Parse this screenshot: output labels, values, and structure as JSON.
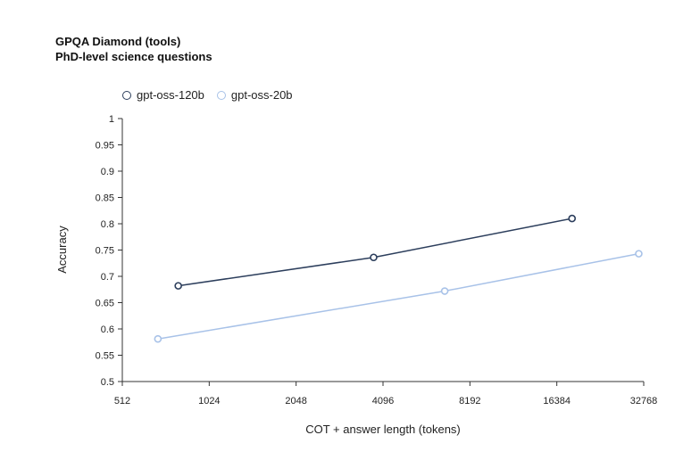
{
  "chart_data": {
    "type": "line",
    "title": "GPQA Diamond (tools)",
    "subtitle": "PhD-level science questions",
    "xlabel": "COT + answer length (tokens)",
    "ylabel": "Accuracy",
    "xscale": "log2",
    "xlim": [
      512,
      32768
    ],
    "ylim": [
      0.5,
      1
    ],
    "xticks": [
      "512",
      "1024",
      "2048",
      "4096",
      "8192",
      "16384",
      "32768"
    ],
    "xtick_values": [
      512,
      1024,
      2048,
      4096,
      8192,
      16384,
      32768
    ],
    "yticks": [
      "0.5",
      "0.55",
      "0.6",
      "0.65",
      "0.7",
      "0.75",
      "0.8",
      "0.85",
      "0.9",
      "0.95",
      "1"
    ],
    "ytick_values": [
      0.5,
      0.55,
      0.6,
      0.65,
      0.7,
      0.75,
      0.8,
      0.85,
      0.9,
      0.95,
      1
    ],
    "grid": false,
    "legend_position": "top-left",
    "series": [
      {
        "name": "gpt-oss-120b",
        "color": "#2c3e5c",
        "x": [
          800,
          3800,
          18500
        ],
        "y": [
          0.682,
          0.736,
          0.81
        ]
      },
      {
        "name": "gpt-oss-20b",
        "color": "#a8c2e8",
        "x": [
          680,
          6700,
          31500
        ],
        "y": [
          0.581,
          0.672,
          0.743
        ]
      }
    ]
  }
}
